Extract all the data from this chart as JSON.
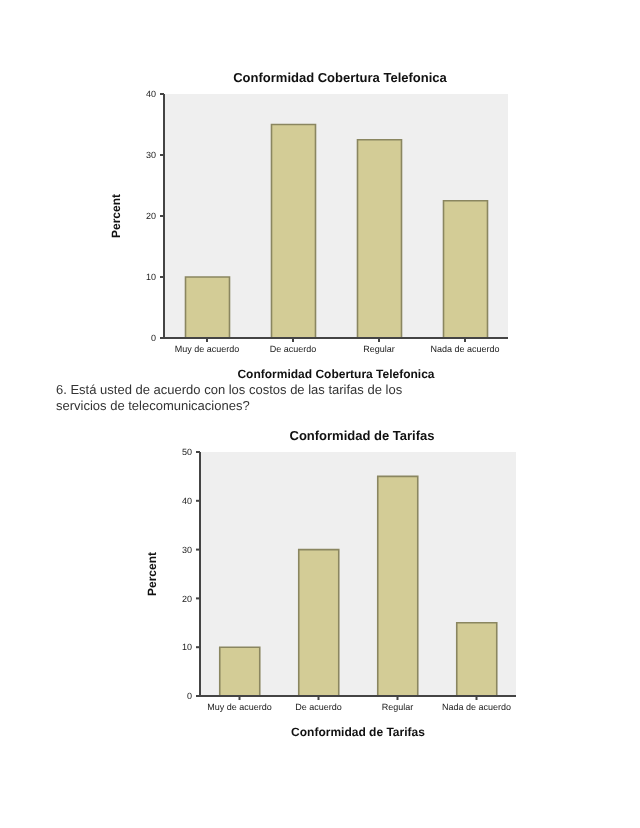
{
  "chart_data": [
    {
      "type": "bar",
      "title": "Conformidad Cobertura Telefonica",
      "xlabel": "Conformidad Cobertura Telefonica",
      "ylabel": "Percent",
      "categories": [
        "Muy de acuerdo",
        "De acuerdo",
        "Regular",
        "Nada de acuerdo"
      ],
      "values": [
        10,
        35,
        32.5,
        22.5
      ],
      "color": "#d3cc96",
      "ylim": [
        0,
        40
      ],
      "yticks": [
        0,
        10,
        20,
        30,
        40
      ]
    },
    {
      "type": "bar",
      "title": "Conformidad de Tarifas",
      "xlabel": "Conformidad de Tarifas",
      "ylabel": "Percent",
      "annotations": [
        "6.   Está usted de acuerdo con los costos de las tarifas de los servicios de telecomunicaciones?"
      ],
      "categories": [
        "Muy de acuerdo",
        "De acuerdo",
        "Regular",
        "Nada de acuerdo"
      ],
      "values": [
        10,
        30,
        45,
        15
      ],
      "color": "#d3cc96",
      "ylim": [
        0,
        50
      ],
      "yticks": [
        0,
        10,
        20,
        30,
        40,
        50
      ]
    }
  ]
}
